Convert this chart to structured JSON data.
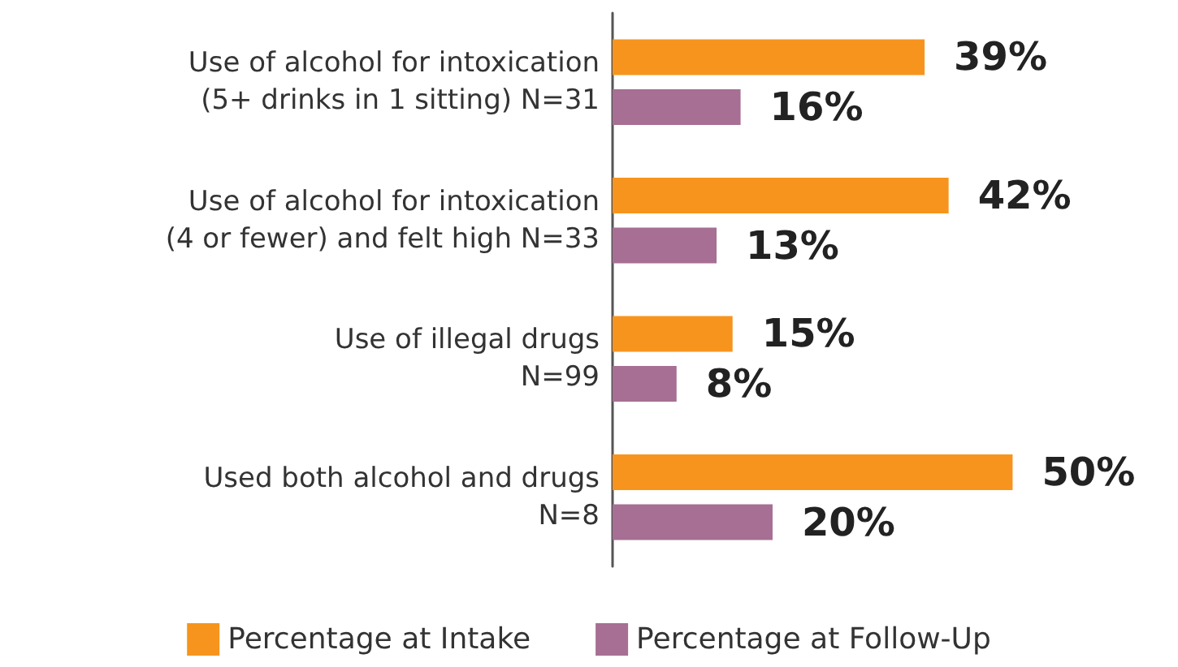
{
  "chart_data": {
    "type": "bar",
    "orientation": "horizontal",
    "categories": [
      "Use of alcohol for intoxication\n(5+ drinks in 1 sitting) N=31",
      "Use of alcohol for intoxication\n(4 or fewer) and felt high N=33",
      "Use of illegal drugs\nN=99",
      "Used both alcohol and drugs\nN=8"
    ],
    "series": [
      {
        "name": "Percentage at Intake",
        "color": "#f7941d",
        "values": [
          39,
          42,
          15,
          50
        ],
        "value_labels": [
          "39%",
          "42%",
          "15%",
          "50%"
        ]
      },
      {
        "name": "Percentage at Follow-Up",
        "color": "#a66f93",
        "values": [
          16,
          13,
          8,
          20
        ],
        "value_labels": [
          "16%",
          "13%",
          "8%",
          "20%"
        ]
      }
    ],
    "legend": "bottom"
  }
}
